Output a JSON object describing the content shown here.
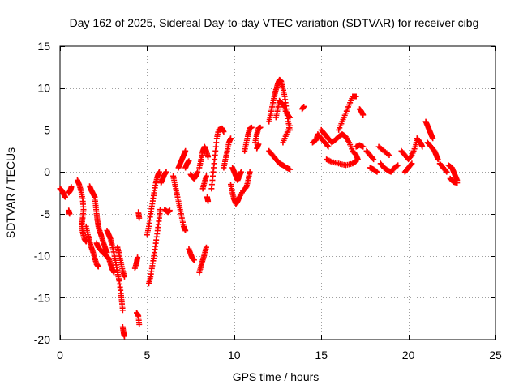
{
  "chart_data": {
    "type": "scatter",
    "title": "Day 162 of 2025, Sidereal Day-to-day VTEC variation (SDTVAR) for receiver cibg",
    "xlabel": "GPS time / hours",
    "ylabel": "SDTVAR / TECUs",
    "xlim": [
      0,
      25
    ],
    "ylim": [
      -20,
      15
    ],
    "xticks": [
      0,
      5,
      10,
      15,
      20,
      25
    ],
    "yticks": [
      -20,
      -15,
      -10,
      -5,
      0,
      5,
      10,
      15
    ],
    "grid": true,
    "marker": "+",
    "color": "#ff0000",
    "segments": [
      [
        [
          0.0,
          -2.0
        ],
        [
          0.1,
          -2.2
        ],
        [
          0.2,
          -2.6
        ],
        [
          0.3,
          -3.0
        ]
      ],
      [
        [
          0.5,
          -2.5
        ],
        [
          0.6,
          -2.2
        ],
        [
          0.65,
          -1.8
        ]
      ],
      [
        [
          0.5,
          -4.6
        ],
        [
          0.55,
          -5.0
        ]
      ],
      [
        [
          1.0,
          -1.0
        ],
        [
          1.1,
          -1.5
        ],
        [
          1.2,
          -2.2
        ],
        [
          1.3,
          -3.2
        ],
        [
          1.35,
          -4.5
        ],
        [
          1.3,
          -5.5
        ],
        [
          1.25,
          -6.3
        ],
        [
          1.3,
          -7.2
        ],
        [
          1.4,
          -8.0
        ],
        [
          1.5,
          -8.3
        ]
      ],
      [
        [
          1.5,
          -6.5
        ],
        [
          1.6,
          -7.5
        ],
        [
          1.7,
          -8.3
        ],
        [
          1.8,
          -9.0
        ],
        [
          1.9,
          -9.6
        ],
        [
          2.0,
          -10.3
        ],
        [
          2.1,
          -11.0
        ],
        [
          2.2,
          -11.3
        ]
      ],
      [
        [
          1.7,
          -1.7
        ],
        [
          1.8,
          -2.2
        ],
        [
          1.9,
          -2.6
        ],
        [
          2.0,
          -3.0
        ],
        [
          2.05,
          -4.0
        ],
        [
          2.1,
          -5.0
        ],
        [
          2.15,
          -5.8
        ],
        [
          2.2,
          -6.5
        ],
        [
          2.3,
          -7.2
        ],
        [
          2.4,
          -7.8
        ],
        [
          2.5,
          -8.5
        ],
        [
          2.6,
          -9.1
        ],
        [
          2.7,
          -9.6
        ]
      ],
      [
        [
          2.1,
          -8.5
        ],
        [
          2.2,
          -9.0
        ],
        [
          2.4,
          -9.5
        ],
        [
          2.6,
          -9.9
        ],
        [
          2.8,
          -10.3
        ],
        [
          2.9,
          -11.0
        ],
        [
          3.0,
          -11.6
        ],
        [
          3.1,
          -12.0
        ]
      ],
      [
        [
          2.7,
          -7.0
        ],
        [
          2.8,
          -7.5
        ],
        [
          2.9,
          -8.0
        ],
        [
          3.0,
          -8.8
        ],
        [
          3.1,
          -9.8
        ],
        [
          3.2,
          -10.8
        ],
        [
          3.3,
          -12.0
        ],
        [
          3.4,
          -13.0
        ],
        [
          3.5,
          -14.5
        ],
        [
          3.55,
          -15.5
        ],
        [
          3.6,
          -16.5
        ]
      ],
      [
        [
          3.3,
          -9.0
        ],
        [
          3.4,
          -9.8
        ],
        [
          3.5,
          -10.8
        ],
        [
          3.6,
          -11.8
        ],
        [
          3.7,
          -12.5
        ]
      ],
      [
        [
          3.6,
          -18.5
        ],
        [
          3.65,
          -19.2
        ],
        [
          3.7,
          -19.6
        ]
      ],
      [
        [
          4.5,
          -4.8
        ],
        [
          4.55,
          -5.5
        ]
      ],
      [
        [
          4.3,
          -11.5
        ],
        [
          4.4,
          -10.8
        ],
        [
          4.45,
          -10.2
        ]
      ],
      [
        [
          4.4,
          -16.8
        ],
        [
          4.5,
          -17.2
        ],
        [
          4.55,
          -18.2
        ]
      ],
      [
        [
          5.1,
          -13.3
        ],
        [
          5.2,
          -12.5
        ],
        [
          5.3,
          -11.2
        ],
        [
          5.4,
          -10.0
        ],
        [
          5.5,
          -8.5
        ],
        [
          5.6,
          -7.0
        ],
        [
          5.7,
          -5.5
        ],
        [
          5.75,
          -4.5
        ]
      ],
      [
        [
          5.0,
          -7.5
        ],
        [
          5.1,
          -6.5
        ],
        [
          5.2,
          -5.0
        ],
        [
          5.3,
          -3.8
        ],
        [
          5.4,
          -2.5
        ],
        [
          5.5,
          -1.3
        ],
        [
          5.6,
          -0.5
        ],
        [
          5.7,
          0.0
        ]
      ],
      [
        [
          5.8,
          -1.3
        ],
        [
          5.9,
          -0.8
        ],
        [
          6.0,
          -0.3
        ],
        [
          6.1,
          0.0
        ]
      ],
      [
        [
          6.0,
          -4.5
        ],
        [
          6.2,
          -4.8
        ],
        [
          6.3,
          -4.6
        ]
      ],
      [
        [
          6.5,
          -0.5
        ],
        [
          6.6,
          -1.5
        ],
        [
          6.7,
          -2.5
        ],
        [
          6.8,
          -3.5
        ],
        [
          6.9,
          -4.5
        ],
        [
          7.0,
          -5.5
        ],
        [
          7.1,
          -6.5
        ],
        [
          7.2,
          -7.0
        ]
      ],
      [
        [
          6.8,
          0.5
        ],
        [
          6.9,
          1.0
        ],
        [
          7.0,
          1.5
        ],
        [
          7.1,
          2.0
        ],
        [
          7.2,
          2.5
        ]
      ],
      [
        [
          7.2,
          0.5
        ],
        [
          7.3,
          1.0
        ],
        [
          7.4,
          1.3
        ]
      ],
      [
        [
          7.4,
          -9.2
        ],
        [
          7.5,
          -9.8
        ],
        [
          7.6,
          -10.3
        ],
        [
          7.7,
          -10.5
        ]
      ],
      [
        [
          7.5,
          -0.3
        ],
        [
          7.6,
          -0.6
        ],
        [
          7.7,
          -0.8
        ],
        [
          7.8,
          -0.5
        ],
        [
          7.9,
          0.0
        ]
      ],
      [
        [
          8.0,
          -12.0
        ],
        [
          8.1,
          -11.2
        ],
        [
          8.2,
          -10.5
        ],
        [
          8.3,
          -9.8
        ],
        [
          8.4,
          -9.0
        ]
      ],
      [
        [
          8.0,
          0.5
        ],
        [
          8.1,
          1.5
        ],
        [
          8.2,
          2.5
        ],
        [
          8.3,
          3.0
        ],
        [
          8.4,
          2.5
        ],
        [
          8.5,
          1.8
        ]
      ],
      [
        [
          8.2,
          -2.0
        ],
        [
          8.3,
          -1.2
        ],
        [
          8.4,
          -0.5
        ]
      ],
      [
        [
          8.5,
          -3.5
        ],
        [
          8.45,
          -3.0
        ]
      ],
      [
        [
          8.7,
          -2.0
        ],
        [
          8.8,
          0.0
        ],
        [
          8.9,
          2.0
        ],
        [
          9.0,
          4.0
        ],
        [
          9.1,
          5.0
        ],
        [
          9.3,
          5.2
        ],
        [
          9.4,
          4.8
        ]
      ],
      [
        [
          9.4,
          0.5
        ],
        [
          9.5,
          1.5
        ],
        [
          9.6,
          2.5
        ],
        [
          9.7,
          3.5
        ],
        [
          9.8,
          4.0
        ]
      ],
      [
        [
          9.8,
          -1.5
        ],
        [
          9.9,
          -2.5
        ],
        [
          10.0,
          -3.3
        ],
        [
          10.1,
          -3.8
        ],
        [
          10.2,
          -3.5
        ],
        [
          10.3,
          -3.0
        ],
        [
          10.5,
          -2.3
        ],
        [
          10.7,
          -1.8
        ],
        [
          10.8,
          -1.0
        ],
        [
          10.9,
          0.0
        ]
      ],
      [
        [
          9.9,
          0.5
        ],
        [
          10.0,
          0.0
        ],
        [
          10.1,
          -0.5
        ],
        [
          10.2,
          -1.0
        ],
        [
          10.3,
          -0.5
        ],
        [
          10.4,
          0.0
        ]
      ],
      [
        [
          10.6,
          2.5
        ],
        [
          10.7,
          3.5
        ],
        [
          10.8,
          4.5
        ],
        [
          10.9,
          5.2
        ],
        [
          11.0,
          5.3
        ]
      ],
      [
        [
          11.2,
          3.5
        ],
        [
          11.3,
          4.5
        ],
        [
          11.4,
          5.2
        ],
        [
          11.5,
          5.3
        ]
      ],
      [
        [
          11.3,
          2.8
        ],
        [
          11.4,
          3.3
        ]
      ],
      [
        [
          12.0,
          6.0
        ],
        [
          12.1,
          7.0
        ],
        [
          12.2,
          8.0
        ],
        [
          12.3,
          9.0
        ],
        [
          12.4,
          9.8
        ],
        [
          12.5,
          10.5
        ],
        [
          12.6,
          11.0
        ],
        [
          12.7,
          10.8
        ],
        [
          12.8,
          10.0
        ],
        [
          12.9,
          9.0
        ],
        [
          13.0,
          7.5
        ],
        [
          13.1,
          6.0
        ],
        [
          13.2,
          5.0
        ]
      ],
      [
        [
          12.0,
          2.5
        ],
        [
          12.2,
          2.0
        ],
        [
          12.4,
          1.5
        ],
        [
          12.6,
          1.0
        ],
        [
          12.8,
          0.8
        ],
        [
          13.0,
          0.5
        ],
        [
          13.2,
          0.3
        ]
      ],
      [
        [
          12.4,
          6.5
        ],
        [
          12.5,
          7.5
        ],
        [
          12.6,
          8.5
        ],
        [
          12.8,
          8.0
        ],
        [
          13.0,
          7.0
        ],
        [
          13.2,
          6.5
        ]
      ],
      [
        [
          12.8,
          3.5
        ],
        [
          13.0,
          4.5
        ],
        [
          13.2,
          5.5
        ]
      ],
      [
        [
          13.9,
          7.5
        ],
        [
          14.0,
          7.8
        ]
      ],
      [
        [
          14.5,
          3.5
        ],
        [
          14.7,
          3.8
        ],
        [
          14.8,
          4.5
        ],
        [
          15.0,
          4.0
        ],
        [
          15.2,
          3.5
        ],
        [
          15.4,
          3.0
        ]
      ],
      [
        [
          15.0,
          5.0
        ],
        [
          15.2,
          4.5
        ],
        [
          15.4,
          4.0
        ],
        [
          15.6,
          3.5
        ],
        [
          15.8,
          3.8
        ],
        [
          16.0,
          4.2
        ],
        [
          16.2,
          4.5
        ],
        [
          16.4,
          4.2
        ],
        [
          16.6,
          3.5
        ],
        [
          16.8,
          2.5
        ],
        [
          17.0,
          2.0
        ],
        [
          17.1,
          1.5
        ]
      ],
      [
        [
          15.3,
          1.5
        ],
        [
          15.6,
          1.2
        ],
        [
          16.0,
          1.0
        ],
        [
          16.4,
          0.8
        ],
        [
          16.8,
          1.0
        ],
        [
          17.0,
          1.3
        ]
      ],
      [
        [
          16.0,
          5.0
        ],
        [
          16.2,
          6.0
        ],
        [
          16.4,
          7.0
        ],
        [
          16.6,
          8.0
        ],
        [
          16.8,
          9.0
        ],
        [
          17.0,
          9.0
        ]
      ],
      [
        [
          17.0,
          3.0
        ],
        [
          17.2,
          3.2
        ],
        [
          17.4,
          3.0
        ]
      ],
      [
        [
          17.2,
          7.5
        ],
        [
          17.3,
          7.2
        ],
        [
          17.4,
          6.8
        ]
      ],
      [
        [
          17.6,
          2.5
        ],
        [
          17.8,
          2.0
        ],
        [
          18.0,
          1.5
        ]
      ],
      [
        [
          17.8,
          0.5
        ],
        [
          18.0,
          0.3
        ],
        [
          18.2,
          0.0
        ]
      ],
      [
        [
          18.3,
          3.0
        ],
        [
          18.6,
          2.5
        ],
        [
          18.9,
          2.0
        ]
      ],
      [
        [
          18.4,
          1.0
        ],
        [
          18.6,
          0.5
        ],
        [
          18.8,
          0.2
        ],
        [
          19.0,
          0.0
        ],
        [
          19.2,
          0.5
        ],
        [
          19.4,
          0.8
        ]
      ],
      [
        [
          19.6,
          2.5
        ],
        [
          19.8,
          2.0
        ],
        [
          20.0,
          1.5
        ],
        [
          20.2,
          2.0
        ],
        [
          20.4,
          3.0
        ],
        [
          20.5,
          4.0
        ]
      ],
      [
        [
          19.8,
          0.0
        ],
        [
          20.0,
          0.5
        ],
        [
          20.2,
          1.0
        ]
      ],
      [
        [
          20.5,
          4.0
        ],
        [
          20.7,
          3.5
        ],
        [
          20.8,
          3.0
        ]
      ],
      [
        [
          21.0,
          6.0
        ],
        [
          21.1,
          5.5
        ],
        [
          21.2,
          5.0
        ],
        [
          21.3,
          4.5
        ],
        [
          21.4,
          4.0
        ]
      ],
      [
        [
          21.1,
          3.5
        ],
        [
          21.3,
          3.0
        ],
        [
          21.5,
          2.5
        ],
        [
          21.6,
          2.0
        ],
        [
          21.7,
          1.5
        ]
      ],
      [
        [
          21.8,
          1.0
        ],
        [
          22.0,
          0.5
        ],
        [
          22.2,
          0.0
        ]
      ],
      [
        [
          22.3,
          0.8
        ],
        [
          22.5,
          0.5
        ],
        [
          22.6,
          0.0
        ],
        [
          22.7,
          -0.5
        ],
        [
          22.8,
          -1.0
        ]
      ],
      [
        [
          22.4,
          -0.8
        ],
        [
          22.6,
          -1.2
        ],
        [
          22.8,
          -1.3
        ]
      ]
    ]
  }
}
